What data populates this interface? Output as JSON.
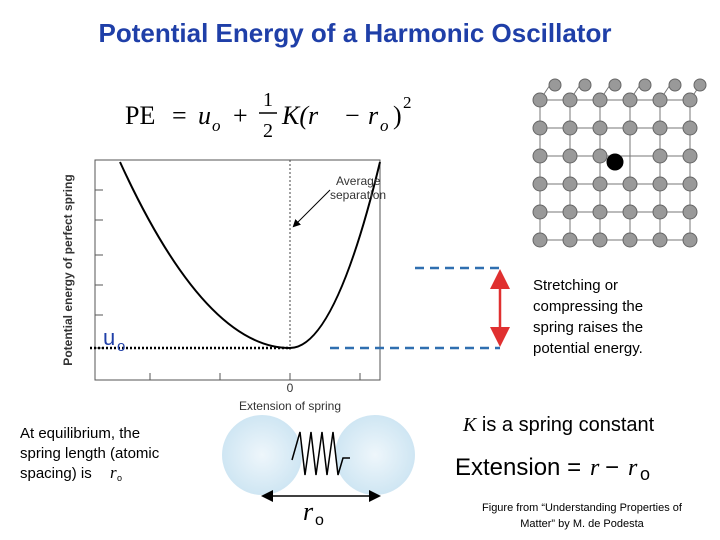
{
  "title": "Potential Energy of a Harmonic Oscillator",
  "formula": [
    "PE",
    "=",
    "u",
    "o",
    "+",
    "1",
    "2",
    "K(r",
    "−",
    "r",
    "o",
    ")",
    "2"
  ],
  "plot": {
    "y_label": "Potential energy of perfect spring",
    "x_label": "Extension of spring",
    "x_tick": 0,
    "annotation": [
      "Average",
      "separation"
    ]
  },
  "u_label": {
    "symbol": "u",
    "sub": "o"
  },
  "stretch_note": [
    "Stretching or",
    "compressing the",
    "spring raises the",
    "potential energy."
  ],
  "equilibrium": {
    "lines": [
      "At equilibrium, the",
      "spring length (atomic",
      "spacing) is "
    ],
    "symbol": "r",
    "sub": "o"
  },
  "k_note": {
    "symbol": "K",
    "text": " is a spring constant"
  },
  "extension": {
    "text": "Extension = ",
    "r": "r",
    "minus": "−",
    "r2": "r",
    "sub": "o"
  },
  "spring_label": {
    "symbol": "r",
    "sub": "o"
  },
  "credit": [
    "Figure from “Understanding Properties of",
    "Matter” by M. de Podesta"
  ]
}
